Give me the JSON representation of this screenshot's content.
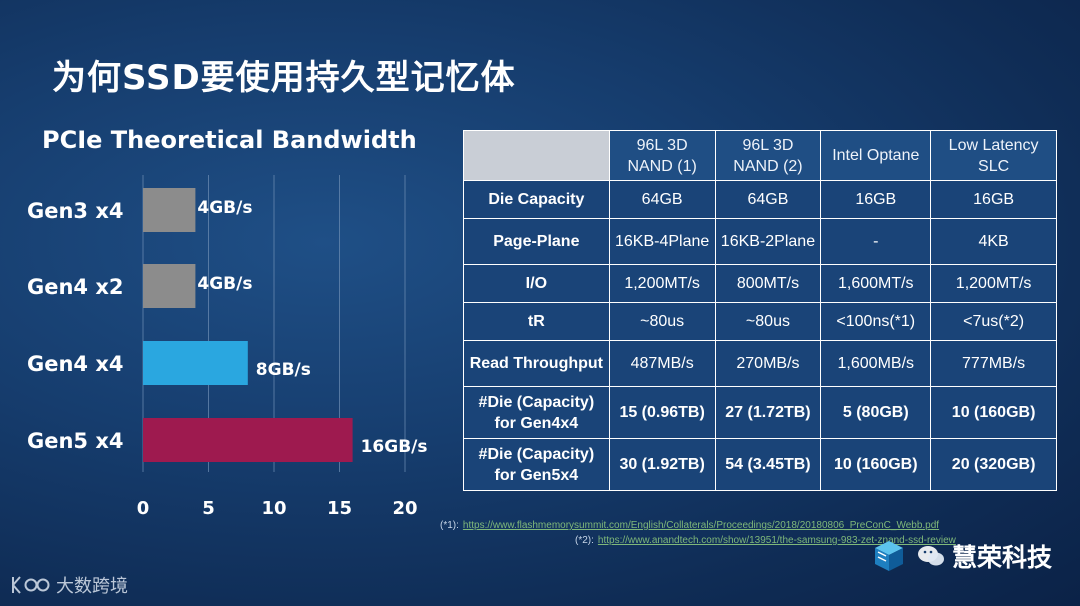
{
  "slide": {
    "title": "为何SSD要使用持久型记忆体"
  },
  "chart_data": {
    "type": "bar",
    "orientation": "horizontal",
    "title": "PCIe Theoretical Bandwidth",
    "categories": [
      "Gen3 x4",
      "Gen4 x2",
      "Gen4 x4",
      "Gen5 x4"
    ],
    "values": [
      4,
      4,
      8,
      16
    ],
    "value_labels": [
      "4GB/s",
      "4GB/s",
      "8GB/s",
      "16GB/s"
    ],
    "bar_colors": [
      "#8c8c8c",
      "#8c8c8c",
      "#2aa7e0",
      "#9e1a4f"
    ],
    "xlim": [
      0,
      20
    ],
    "xticks": [
      "0",
      "5",
      "10",
      "15",
      "20"
    ],
    "grid": true
  },
  "table": {
    "columns": [
      "96L 3D NAND (1)",
      "96L 3D NAND (2)",
      "Intel Optane",
      "Low Latency SLC"
    ],
    "rows": [
      {
        "label": "Die Capacity",
        "cells": [
          "64GB",
          "64GB",
          "16GB",
          "16GB"
        ],
        "bold": false
      },
      {
        "label": "Page-Plane",
        "cells": [
          "16KB-4Plane",
          "16KB-2Plane",
          "-",
          "4KB"
        ],
        "bold": false
      },
      {
        "label": "I/O",
        "cells": [
          "1,200MT/s",
          "800MT/s",
          "1,600MT/s",
          "1,200MT/s"
        ],
        "bold": false
      },
      {
        "label": "tR",
        "cells": [
          "~80us",
          "~80us",
          "<100ns(*1)",
          "<7us(*2)"
        ],
        "bold": false
      },
      {
        "label": "Read Throughput",
        "cells": [
          "487MB/s",
          "270MB/s",
          "1,600MB/s",
          "777MB/s"
        ],
        "bold": false
      },
      {
        "label": "#Die (Capacity) for Gen4x4",
        "cells": [
          "15 (0.96TB)",
          "27 (1.72TB)",
          "5 (80GB)",
          "10 (160GB)"
        ],
        "bold": true
      },
      {
        "label": "#Die (Capacity) for Gen5x4",
        "cells": [
          "30 (1.92TB)",
          "54 (3.45TB)",
          "10 (160GB)",
          "20 (320GB)"
        ],
        "bold": true
      }
    ]
  },
  "notes": {
    "note1_label": "(*1):",
    "note1_url": "https://www.flashmemorysummit.com/English/Collaterals/Proceedings/2018/20180806_PreConC_Webb.pdf",
    "note2_label": "(*2):",
    "note2_url": "https://www.anandtech.com/show/13951/the-samsung-983-zet-znand-ssd-review"
  },
  "brand": {
    "name": "慧荣科技",
    "accent": "#2aa7e0"
  },
  "watermark": {
    "text": "大数跨境"
  }
}
